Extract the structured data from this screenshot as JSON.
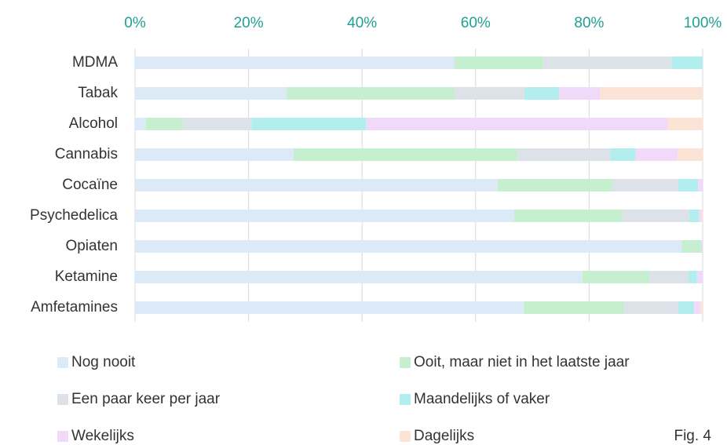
{
  "chart_data": {
    "type": "stacked-bar-horizontal",
    "categories": [
      "MDMA",
      "Tabak",
      "Alcohol",
      "Cannabis",
      "Cocaïne",
      "Psychedelica",
      "Opiaten",
      "Ketamine",
      "Amfetamines"
    ],
    "series": [
      {
        "name": "Nog nooit",
        "color": "#dce9f7",
        "values": [
          56.3,
          26.7,
          1.9,
          27.9,
          63.9,
          66.8,
          96.3,
          78.8,
          68.5
        ]
      },
      {
        "name": "Ooit, maar niet in het laatste jaar",
        "color": "#c5efcf",
        "values": [
          15.6,
          29.6,
          6.4,
          39.5,
          20.2,
          19.1,
          3.3,
          11.8,
          17.7
        ]
      },
      {
        "name": "Een paar keer per jaar",
        "color": "#dde2e9",
        "values": [
          22.6,
          12.3,
          12.2,
          16.3,
          11.6,
          11.7,
          0.2,
          6.9,
          9.5
        ]
      },
      {
        "name": "Maandelijks of vaker",
        "color": "#b2eeee",
        "values": [
          5.5,
          6.1,
          20.2,
          4.5,
          3.5,
          1.7,
          0.1,
          1.5,
          2.8
        ]
      },
      {
        "name": "Wekelijks",
        "color": "#f1d9f9",
        "values": [
          0,
          7.2,
          53.2,
          7.4,
          0.8,
          0.5,
          0.1,
          1.0,
          1.1
        ]
      },
      {
        "name": "Dagelijks",
        "color": "#fbe4d5",
        "values": [
          0,
          18.1,
          6.1,
          4.4,
          0,
          0.2,
          0,
          0,
          0.4
        ]
      }
    ],
    "xlim": [
      0,
      100
    ],
    "xticks": [
      {
        "value": 0,
        "label": "0%"
      },
      {
        "value": 20,
        "label": "20%"
      },
      {
        "value": 40,
        "label": "40%"
      },
      {
        "value": 60,
        "label": "60%"
      },
      {
        "value": 80,
        "label": "80%"
      },
      {
        "value": 100,
        "label": "100%"
      }
    ],
    "grid": true,
    "annotation": "Fig. 4"
  }
}
